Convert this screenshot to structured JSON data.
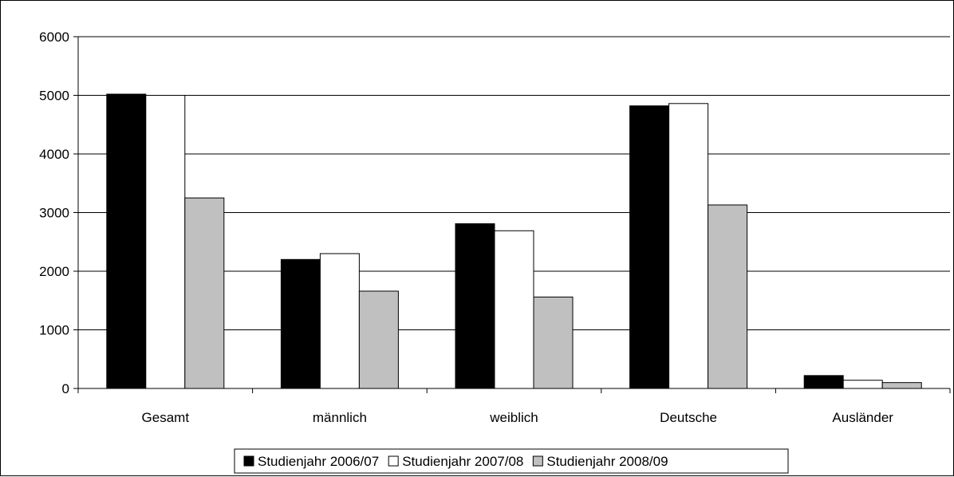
{
  "chart_data": {
    "type": "bar",
    "categories": [
      "Gesamt",
      "männlich",
      "weiblich",
      "Deutsche",
      "Ausländer"
    ],
    "series": [
      {
        "name": "Studienjahr 2006/07",
        "color": "#000000",
        "values": [
          5020,
          2200,
          2810,
          4820,
          220
        ]
      },
      {
        "name": "Studienjahr 2007/08",
        "color": "#ffffff",
        "values": [
          5000,
          2300,
          2690,
          4860,
          140
        ]
      },
      {
        "name": "Studienjahr 2008/09",
        "color": "#c0c0c0",
        "values": [
          3250,
          1660,
          1560,
          3130,
          100
        ]
      }
    ],
    "yticks": [
      "0",
      "1000",
      "2000",
      "3000",
      "4000",
      "5000",
      "6000"
    ],
    "ylim": [
      0,
      6000
    ],
    "grid": true,
    "legend_position": "bottom"
  }
}
